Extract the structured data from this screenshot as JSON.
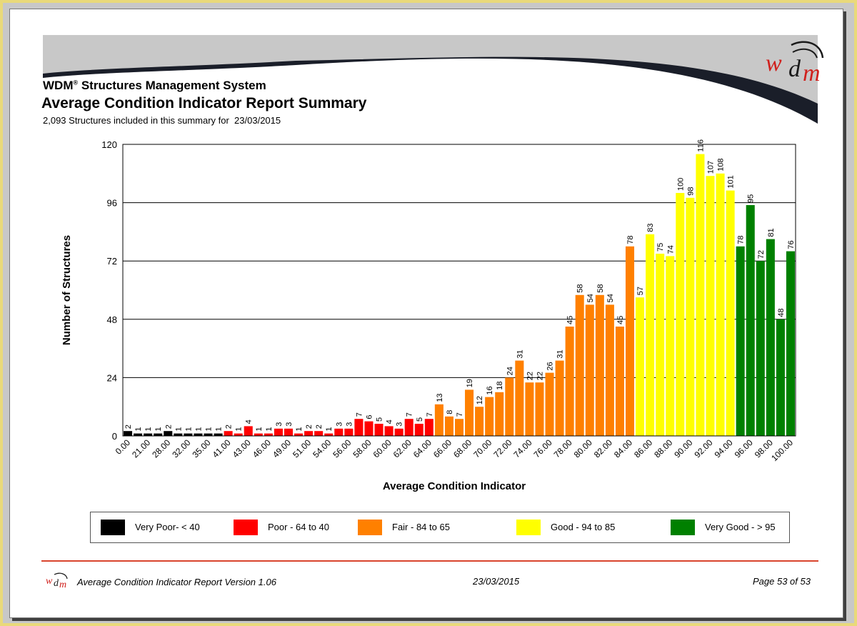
{
  "header": {
    "system_name": "WDM",
    "system_reg": "®",
    "system_rest": " Structures Management System",
    "report_title": "Average Condition Indicator Report Summary",
    "subtitle": "2,093 Structures included in this summary for  23/03/2015",
    "logo_text": "wdm"
  },
  "colors": {
    "very_poor": "#000000",
    "poor": "#ff0000",
    "fair": "#ff8000",
    "good": "#ffff00",
    "very_good": "#008000",
    "banner_gray": "#c8c8c8",
    "banner_dark": "#1a1e29",
    "footer_rule": "#d9442d"
  },
  "chart_data": {
    "type": "bar",
    "xlabel": "Average Condition Indicator",
    "ylabel": "Number of Structures",
    "ylim": [
      0,
      120
    ],
    "yticks": [
      0,
      24,
      48,
      72,
      96,
      120
    ],
    "grid": true,
    "tick_labels": [
      "0.00",
      "21.00",
      "28.00",
      "32.00",
      "35.00",
      "41.00",
      "43.00",
      "46.00",
      "49.00",
      "51.00",
      "54.00",
      "56.00",
      "58.00",
      "60.00",
      "62.00",
      "64.00",
      "66.00",
      "68.00",
      "70.00",
      "72.00",
      "74.00",
      "76.00",
      "78.00",
      "80.00",
      "82.00",
      "84.00",
      "86.00",
      "88.00",
      "90.00",
      "92.00",
      "94.00",
      "96.00",
      "98.00",
      "100.00"
    ],
    "values": [
      2,
      1,
      1,
      1,
      2,
      1,
      1,
      1,
      1,
      1,
      2,
      1,
      4,
      1,
      1,
      3,
      3,
      1,
      2,
      2,
      1,
      3,
      3,
      7,
      6,
      5,
      4,
      3,
      7,
      5,
      7,
      13,
      8,
      7,
      19,
      12,
      16,
      18,
      24,
      31,
      22,
      22,
      26,
      31,
      45,
      58,
      54,
      58,
      54,
      45,
      78,
      57,
      83,
      75,
      74,
      100,
      98,
      116,
      107,
      108,
      101,
      78,
      95,
      72,
      81,
      48,
      76
    ],
    "categories_group": [
      "vp",
      "vp",
      "vp",
      "vp",
      "vp",
      "vp",
      "vp",
      "vp",
      "vp",
      "vp",
      "p",
      "p",
      "p",
      "p",
      "p",
      "p",
      "p",
      "p",
      "p",
      "p",
      "p",
      "p",
      "p",
      "p",
      "p",
      "p",
      "p",
      "p",
      "p",
      "p",
      "p",
      "f",
      "f",
      "f",
      "f",
      "f",
      "f",
      "f",
      "f",
      "f",
      "f",
      "f",
      "f",
      "f",
      "f",
      "f",
      "f",
      "f",
      "f",
      "f",
      "f",
      "g",
      "g",
      "g",
      "g",
      "g",
      "g",
      "g",
      "g",
      "g",
      "g",
      "vg",
      "vg",
      "vg",
      "vg",
      "vg",
      "vg"
    ],
    "legend": [
      {
        "key": "vp",
        "label": "Very Poor- < 40"
      },
      {
        "key": "p",
        "label": "Poor - 64 to 40"
      },
      {
        "key": "f",
        "label": "Fair - 84 to 65"
      },
      {
        "key": "g",
        "label": "Good - 94 to 85"
      },
      {
        "key": "vg",
        "label": "Very Good - > 95"
      }
    ],
    "legend_position": "bottom"
  },
  "footer": {
    "left": "Average Condition Indicator Report Version 1.06",
    "date": "23/03/2015",
    "page": "Page 53 of 53"
  }
}
